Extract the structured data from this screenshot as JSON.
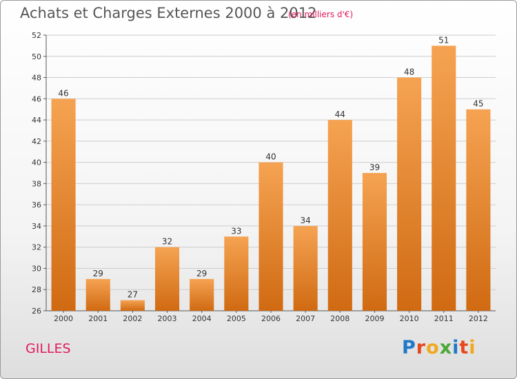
{
  "header": {
    "title": "Achats et Charges Externes 2000 à 2012",
    "unit": "(en milliers d'€)"
  },
  "footer": {
    "place": "GILLES",
    "logo_letters": [
      "P",
      "r",
      "o",
      "x",
      "i",
      "t",
      "i"
    ],
    "logo_colors": [
      "#1f78c8",
      "#e8461c",
      "#f2a81d",
      "#4aa835",
      "#1f78c8",
      "#e8461c",
      "#f2a81d"
    ]
  },
  "colors": {
    "bar_top": "#f5a352",
    "bar_bottom": "#d06a12",
    "accent": "#e2195c",
    "grid": "#cccccc"
  },
  "chart_data": {
    "type": "bar",
    "title": "Achats et Charges Externes 2000 à 2012",
    "subtitle": "(en milliers d'€)",
    "xlabel": "",
    "ylabel": "",
    "categories": [
      "2000",
      "2001",
      "2002",
      "2003",
      "2004",
      "2005",
      "2006",
      "2007",
      "2008",
      "2009",
      "2010",
      "2011",
      "2012"
    ],
    "values": [
      46,
      29,
      27,
      32,
      29,
      33,
      40,
      34,
      44,
      39,
      48,
      51,
      45
    ],
    "ylim": [
      26,
      52
    ],
    "yticks": [
      26,
      28,
      30,
      32,
      34,
      36,
      38,
      40,
      42,
      44,
      46,
      48,
      50,
      52
    ],
    "grid": "horizontal",
    "legend": "none"
  }
}
